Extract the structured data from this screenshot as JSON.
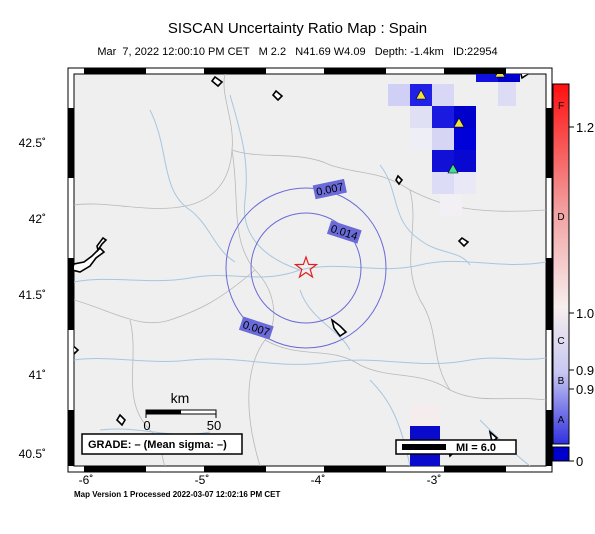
{
  "title": "SISCAN Uncertainty Ratio Map : Spain",
  "subtitle": "Mar  7, 2022 12:00:10 PM CET   M 2.2   N41.69 W4.09   Depth: -1.4km   ID:22954",
  "footer": "Map Version 1 Processed 2022-03-07 12:02:16 PM CET",
  "map": {
    "lat_ticks": [
      "42.5˚",
      "42˚",
      "41.5˚",
      "41˚",
      "40.5˚"
    ],
    "lon_ticks": [
      "-6˚",
      "-5˚",
      "-4˚",
      "-3˚"
    ],
    "contours": [
      "0.007",
      "0.014",
      "0.007"
    ],
    "scale_unit": "km",
    "scale_ticks": [
      "0",
      "50"
    ],
    "grade_box": "GRADE: – (Mean sigma: –)",
    "mi_box": "MI = 6.0"
  },
  "colorbar": {
    "letters": [
      "F",
      "D",
      "C",
      "B",
      "A"
    ],
    "right_labels": [
      "1.2",
      "1.0",
      "0.9",
      "0.9",
      "0"
    ],
    "colors": {
      "top": "#ff0000",
      "mid": "#f7eeee",
      "bottom": "#0000cc"
    }
  }
}
